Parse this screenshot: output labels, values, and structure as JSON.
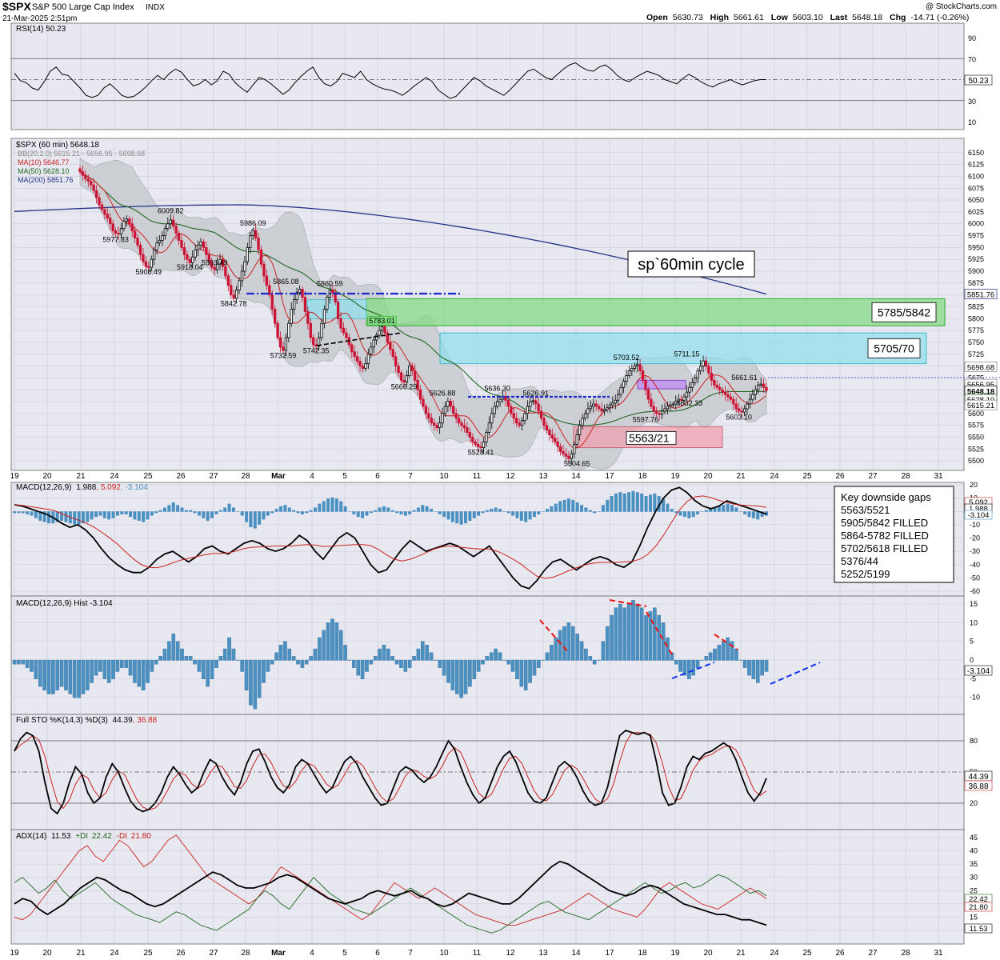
{
  "header": {
    "symbol": "$SPX",
    "name": "S&P 500 Large Cap Index",
    "exchange": "INDX",
    "date": "21-Mar-2025 2:51pm",
    "watermark": "@ StockCharts.com",
    "open_label": "Open",
    "open": "5630.73",
    "high_label": "High",
    "high": "5661.61",
    "low_label": "Low",
    "low": "5603.10",
    "last_label": "Last",
    "last": "5648.18",
    "chg_label": "Chg",
    "chg": "-14.71 (-0.26%)"
  },
  "colors": {
    "panel_bg": "#e8e8f0",
    "grid": "#c8c8d4",
    "candle_down": "#cc1133",
    "candle_up": "#000000",
    "ma10": "#cc2222",
    "ma50": "#226622",
    "ma200": "#223388",
    "bb_fill": "#c4c8cc",
    "hist": "#4a90c0",
    "green_zone": "#7fdc7f",
    "cyan_zone": "#8fe0ec",
    "red_zone": "#f0a0b0",
    "purple_zone": "#c08ff0"
  },
  "x_axis": {
    "labels": [
      "19",
      "20",
      "21",
      "24",
      "25",
      "26",
      "27",
      "28",
      "Mar",
      "4",
      "5",
      "6",
      "7",
      "10",
      "11",
      "12",
      "13",
      "14",
      "17",
      "18",
      "19",
      "20",
      "21",
      "24",
      "25",
      "26",
      "27",
      "28",
      "31"
    ]
  },
  "rsi": {
    "legend": "RSI(14) 50.23",
    "last": "50.23",
    "ticks": [
      "90",
      "70",
      "50",
      "30",
      "10"
    ],
    "values": [
      56,
      49,
      47,
      42,
      40,
      48,
      58,
      62,
      55,
      54,
      48,
      42,
      35,
      33,
      35,
      42,
      46,
      41,
      35,
      33,
      34,
      38,
      43,
      49,
      54,
      50,
      56,
      60,
      57,
      50,
      44,
      46,
      50,
      45,
      49,
      58,
      55,
      47,
      42,
      38,
      45,
      52,
      50,
      46,
      41,
      36,
      40,
      47,
      53,
      58,
      62,
      52,
      46,
      44,
      48,
      56,
      54,
      52,
      58,
      50,
      46,
      43,
      41,
      40,
      38,
      35,
      39,
      44,
      48,
      52,
      48,
      40,
      36,
      32,
      34,
      40,
      46,
      52,
      49,
      44,
      41,
      38,
      35,
      40,
      46,
      52,
      58,
      60,
      56,
      52,
      50,
      55,
      60,
      64,
      66,
      62,
      59,
      58,
      62,
      64,
      60,
      54,
      50,
      48,
      52,
      55,
      58,
      56,
      54,
      50,
      48,
      46,
      51,
      55,
      52,
      48,
      45,
      43,
      46,
      48,
      50,
      47,
      45,
      47,
      49,
      50,
      50
    ]
  },
  "price": {
    "legend": "$SPX (60 min) 5648.18",
    "bb_legend": "BB(20,2.0) 5615.21 - 5656.95 - 5698.68",
    "ma10_legend": "MA(10) 5646.77",
    "ma50_legend": "MA(50) 5628.10",
    "ma200_legend": "MA(200) 5851.76",
    "ylim": [
      5480,
      6175
    ],
    "ticks": [
      "6150",
      "6125",
      "6100",
      "6075",
      "6050",
      "6025",
      "6000",
      "5975",
      "5950",
      "5925",
      "5900",
      "5875",
      "5850",
      "5825",
      "5800",
      "5775",
      "5750",
      "5725",
      "5700",
      "5675",
      "5650",
      "5625",
      "5600",
      "5575",
      "5550",
      "5525",
      "5500"
    ],
    "right_badges": [
      "5851.76",
      "5698.68",
      "5656.95",
      "5648.18",
      "5628.10",
      "5615.21"
    ],
    "closes": [
      6110,
      6102,
      6095,
      6090,
      6082,
      6070,
      6055,
      6040,
      6030,
      6020,
      6012,
      6000,
      5985,
      5980,
      5978,
      5990,
      6005,
      6010,
      6000,
      5985,
      5970,
      5955,
      5935,
      5920,
      5910,
      5908,
      5925,
      5945,
      5960,
      5965,
      5975,
      5990,
      6000,
      6008,
      5995,
      5980,
      5965,
      5950,
      5935,
      5925,
      5918,
      5930,
      5945,
      5955,
      5962,
      5950,
      5935,
      5920,
      5908,
      5903,
      5915,
      5925,
      5910,
      5890,
      5870,
      5850,
      5843,
      5860,
      5880,
      5900,
      5920,
      5950,
      5975,
      5986,
      5970,
      5945,
      5915,
      5890,
      5870,
      5850,
      5820,
      5790,
      5760,
      5740,
      5733,
      5760,
      5790,
      5820,
      5840,
      5855,
      5862,
      5845,
      5815,
      5790,
      5760,
      5745,
      5742,
      5760,
      5790,
      5820,
      5845,
      5860,
      5855,
      5835,
      5800,
      5780,
      5770,
      5760,
      5745,
      5730,
      5720,
      5710,
      5700,
      5695,
      5705,
      5725,
      5740,
      5755,
      5765,
      5775,
      5783,
      5770,
      5750,
      5735,
      5720,
      5700,
      5686,
      5670,
      5666,
      5680,
      5700,
      5690,
      5670,
      5650,
      5630,
      5615,
      5600,
      5590,
      5580,
      5575,
      5570,
      5580,
      5600,
      5615,
      5626,
      5615,
      5600,
      5590,
      5580,
      5575,
      5570,
      5560,
      5550,
      5540,
      5535,
      5530,
      5528,
      5540,
      5560,
      5580,
      5600,
      5615,
      5625,
      5630,
      5636,
      5628,
      5615,
      5600,
      5590,
      5580,
      5575,
      5585,
      5600,
      5615,
      5625,
      5627,
      5620,
      5605,
      5590,
      5575,
      5565,
      5555,
      5548,
      5540,
      5530,
      5520,
      5515,
      5510,
      5505,
      5515,
      5535,
      5555,
      5575,
      5590,
      5600,
      5610,
      5615,
      5620,
      5615,
      5610,
      5605,
      5608,
      5612,
      5618,
      5622,
      5628,
      5640,
      5655,
      5668,
      5680,
      5690,
      5695,
      5700,
      5703,
      5690,
      5670,
      5650,
      5630,
      5615,
      5605,
      5600,
      5598,
      5605,
      5610,
      5615,
      5618,
      5620,
      5625,
      5630,
      5628,
      5635,
      5645,
      5655,
      5665,
      5675,
      5690,
      5700,
      5711,
      5700,
      5685,
      5670,
      5660,
      5655,
      5650,
      5645,
      5640,
      5635,
      5630,
      5620,
      5610,
      5605,
      5603,
      5610,
      5620,
      5630,
      5640,
      5650,
      5660,
      5662,
      5655,
      5648
    ]
  },
  "price_labels": [
    {
      "text": "6009.82",
      "t": 33,
      "v": 6022
    },
    {
      "text": "5986.09",
      "t": 63,
      "v": 5996
    },
    {
      "text": "5977.83",
      "t": 13,
      "v": 5962
    },
    {
      "text": "5908.49",
      "t": 25,
      "v": 5893
    },
    {
      "text": "5918.04",
      "t": 40,
      "v": 5903
    },
    {
      "text": "5903.49",
      "t": 49,
      "v": 5913
    },
    {
      "text": "5865.08",
      "t": 75,
      "v": 5873
    },
    {
      "text": "5860.59",
      "t": 91,
      "v": 5869
    },
    {
      "text": "5842.78",
      "t": 56,
      "v": 5827
    },
    {
      "text": "5783.01",
      "t": 110,
      "v": 5790
    },
    {
      "text": "5732.59",
      "t": 74,
      "v": 5717
    },
    {
      "text": "5742.35",
      "t": 86,
      "v": 5727
    },
    {
      "text": "5666.29",
      "t": 118,
      "v": 5651
    },
    {
      "text": "5636.30",
      "t": 152,
      "v": 5648
    },
    {
      "text": "5626.88",
      "t": 132,
      "v": 5638
    },
    {
      "text": "5626.91",
      "t": 166,
      "v": 5638
    },
    {
      "text": "5528.41",
      "t": 146,
      "v": 5513
    },
    {
      "text": "5504.65",
      "t": 181,
      "v": 5489
    },
    {
      "text": "5703.52",
      "t": 199,
      "v": 5713
    },
    {
      "text": "5711.15",
      "t": 221,
      "v": 5720
    },
    {
      "text": "5661.61",
      "t": 242,
      "v": 5671
    },
    {
      "text": "5632.33",
      "t": 222,
      "v": 5617
    },
    {
      "text": "5597.76",
      "t": 206,
      "v": 5582
    },
    {
      "text": "5603.10",
      "t": 240,
      "v": 5587
    }
  ],
  "zones": [
    {
      "label": "5785/5842",
      "top": 5842,
      "bottom": 5785,
      "color": "#7fdc7f"
    },
    {
      "label": "5705/70",
      "top": 5770,
      "bottom": 5705,
      "color": "#8fe0ec"
    }
  ],
  "red_zone_label": "5563/21",
  "cycle_label": "sp`60min cycle",
  "macd": {
    "legend_name": "MACD(12,26,9)",
    "macd_value": "1.988",
    "signal_value": "5.092",
    "hist_value": "-3.104",
    "ticks": [
      "20",
      "10",
      "0",
      "-10",
      "-20",
      "-30",
      "-40",
      "-50",
      "-60"
    ],
    "badges": [
      "5.092",
      "1.988",
      "-3.104"
    ],
    "ylim": [
      -62,
      22
    ],
    "macd_line": [
      5,
      4,
      2,
      0,
      -2,
      -5,
      -9,
      -12,
      -10,
      -14,
      -20,
      -28,
      -35,
      -40,
      -44,
      -46,
      -46,
      -42,
      -36,
      -32,
      -30,
      -34,
      -38,
      -34,
      -28,
      -26,
      -30,
      -32,
      -28,
      -24,
      -22,
      -24,
      -28,
      -30,
      -28,
      -24,
      -18,
      -22,
      -30,
      -36,
      -28,
      -20,
      -16,
      -20,
      -30,
      -40,
      -46,
      -44,
      -36,
      -28,
      -22,
      -26,
      -30,
      -28,
      -26,
      -24,
      -26,
      -30,
      -34,
      -30,
      -26,
      -34,
      -42,
      -50,
      -56,
      -58,
      -52,
      -44,
      -38,
      -36,
      -40,
      -44,
      -40,
      -36,
      -34,
      -36,
      -40,
      -42,
      -38,
      -26,
      -12,
      0,
      10,
      16,
      18,
      14,
      8,
      4,
      2,
      4,
      8,
      6,
      4,
      2,
      0,
      -2
    ]
  },
  "macd_hist": {
    "legend": "MACD(12,26,9) Hist -3.104",
    "last": "-3.104",
    "ticks": [
      "15",
      "10",
      "5",
      "0",
      "-5",
      "-10"
    ],
    "ylim": [
      -14,
      18
    ],
    "values": [
      -1,
      -1,
      -1,
      -2,
      -3,
      -5,
      -7,
      -8,
      -9,
      -9,
      -8,
      -7,
      -8,
      -9,
      -10,
      -10,
      -9,
      -8,
      -6,
      -4,
      -3,
      -5,
      -6,
      -5,
      -3,
      -2,
      -2,
      -4,
      -6,
      -7,
      -8,
      -6,
      -3,
      -1,
      1,
      3,
      5,
      7,
      5,
      3,
      1,
      1,
      -1,
      -3,
      -5,
      -7,
      -5,
      -2,
      1,
      3,
      6,
      3,
      0,
      -3,
      -8,
      -12,
      -13,
      -10,
      -6,
      -3,
      -1,
      2,
      4,
      5,
      3,
      1,
      -1,
      -2,
      -1,
      1,
      3,
      6,
      8,
      10,
      11,
      10,
      8,
      4,
      0,
      -2,
      -4,
      -5,
      -3,
      -1,
      1,
      3,
      4,
      3,
      1,
      -1,
      -2,
      -3,
      -2,
      1,
      3,
      5,
      4,
      2,
      0,
      -2,
      -4,
      -6,
      -8,
      -9,
      -10,
      -9,
      -7,
      -5,
      -3,
      -1,
      1,
      2,
      3,
      2,
      0,
      -1,
      -3,
      -5,
      -7,
      -8,
      -6,
      -4,
      -2,
      0,
      2,
      4,
      6,
      8,
      9,
      10,
      9,
      7,
      5,
      3,
      1,
      -1,
      0,
      5,
      9,
      12,
      14,
      15,
      14,
      15,
      16,
      15,
      14,
      12,
      13,
      14,
      12,
      10,
      6,
      2,
      -1,
      -3,
      -4,
      -5,
      -4,
      -2,
      0,
      1,
      2,
      3,
      4,
      5,
      6,
      5,
      3,
      0,
      -2,
      -4,
      -5,
      -6,
      -4,
      -3
    ]
  },
  "stoch": {
    "legend_name": "Full STO %K(14,3) %D(3)",
    "k_value": "44.39",
    "d_value": "36.88",
    "ticks": [
      "80",
      "50",
      "20"
    ],
    "k": [
      70,
      82,
      88,
      85,
      70,
      40,
      15,
      10,
      20,
      40,
      55,
      48,
      30,
      20,
      25,
      45,
      58,
      50,
      35,
      22,
      15,
      12,
      14,
      20,
      30,
      45,
      55,
      48,
      38,
      30,
      35,
      50,
      62,
      58,
      45,
      35,
      28,
      40,
      58,
      70,
      72,
      60,
      45,
      35,
      30,
      38,
      55,
      62,
      58,
      48,
      38,
      30,
      35,
      48,
      60,
      65,
      58,
      45,
      35,
      25,
      18,
      20,
      35,
      50,
      55,
      52,
      45,
      40,
      45,
      55,
      68,
      80,
      72,
      55,
      40,
      28,
      20,
      25,
      40,
      55,
      65,
      70,
      60,
      45,
      30,
      22,
      20,
      25,
      40,
      55,
      60,
      55,
      45,
      32,
      22,
      18,
      20,
      35,
      60,
      85,
      90,
      88,
      86,
      88,
      85,
      60,
      30,
      18,
      20,
      35,
      55,
      65,
      62,
      68,
      70,
      74,
      78,
      74,
      62,
      45,
      30,
      22,
      30,
      44
    ]
  },
  "adx": {
    "legend_name": "ADX(14)",
    "adx_value": "11.53",
    "plus_label": "+DI",
    "plus_value": "22.42",
    "minus_label": "-DI",
    "minus_value": "21.80",
    "ticks": [
      "45",
      "40",
      "35",
      "30",
      "25",
      "20",
      "15",
      "10"
    ],
    "badges": [
      "22.42",
      "21.80",
      "11.53"
    ],
    "adx": [
      20,
      22,
      21,
      18,
      16,
      18,
      20,
      23,
      26,
      28,
      30,
      29,
      27,
      25,
      24,
      22,
      20,
      19,
      20,
      22,
      24,
      26,
      28,
      30,
      32,
      31,
      29,
      27,
      26,
      26,
      27,
      28,
      30,
      31,
      30,
      28,
      26,
      24,
      22,
      21,
      20,
      21,
      22,
      24,
      25,
      24,
      23,
      24,
      25,
      23,
      22,
      20,
      19,
      20,
      22,
      24,
      23,
      22,
      21,
      20,
      20,
      22,
      25,
      28,
      31,
      34,
      36,
      35,
      33,
      31,
      29,
      27,
      25,
      24,
      23,
      24,
      26,
      27,
      26,
      24,
      22,
      20,
      19,
      18,
      17,
      16,
      16,
      15,
      14,
      14,
      13,
      12
    ],
    "plus_di": [
      28,
      30,
      27,
      24,
      26,
      29,
      25,
      22,
      24,
      26,
      28,
      25,
      22,
      20,
      18,
      16,
      15,
      14,
      13,
      15,
      17,
      16,
      14,
      12,
      11,
      10,
      12,
      14,
      16,
      18,
      22,
      25,
      23,
      20,
      18,
      22,
      26,
      30,
      27,
      24,
      22,
      20,
      18,
      17,
      16,
      18,
      20,
      22,
      24,
      26,
      24,
      22,
      20,
      18,
      16,
      14,
      12,
      11,
      10,
      9,
      10,
      12,
      14,
      16,
      18,
      20,
      21,
      19,
      17,
      16,
      15,
      14,
      16,
      18,
      20,
      22,
      24,
      26,
      28,
      26,
      24,
      25,
      27,
      28,
      26,
      27,
      29,
      31,
      30,
      28,
      26,
      24,
      25,
      23
    ],
    "minus_di": [
      15,
      14,
      16,
      20,
      24,
      28,
      32,
      36,
      40,
      42,
      38,
      36,
      40,
      44,
      42,
      38,
      34,
      36,
      40,
      44,
      46,
      42,
      38,
      34,
      30,
      28,
      26,
      24,
      22,
      20,
      22,
      26,
      30,
      34,
      32,
      30,
      28,
      26,
      24,
      22,
      20,
      18,
      16,
      14,
      16,
      20,
      24,
      28,
      26,
      24,
      22,
      24,
      26,
      24,
      22,
      20,
      18,
      16,
      15,
      14,
      13,
      12,
      12,
      13,
      14,
      15,
      16,
      17,
      18,
      20,
      22,
      24,
      22,
      20,
      18,
      17,
      16,
      15,
      18,
      22,
      26,
      28,
      26,
      24,
      22,
      20,
      19,
      18,
      20,
      22,
      24,
      26,
      24,
      22
    ]
  }
}
